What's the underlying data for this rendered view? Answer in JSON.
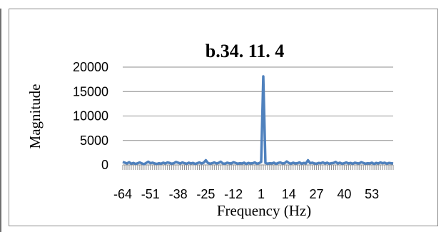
{
  "chart_data": {
    "type": "line",
    "title": "b.34. 11. 4",
    "xlabel": "Frequency (Hz)",
    "ylabel": "Magnitude",
    "ylim": [
      0,
      20000
    ],
    "yticks": [
      0,
      5000,
      10000,
      15000,
      20000
    ],
    "xtick_labels": [
      "-64",
      "-51",
      "-38",
      "-25",
      "-12",
      "1",
      "14",
      "27",
      "40",
      "53"
    ],
    "grid": "horizontal",
    "legend": "none",
    "color": "#4f81bd",
    "series": [
      {
        "x": [
          -64,
          -63,
          -62,
          -61,
          -60,
          -59,
          -58,
          -57,
          -56,
          -55,
          -54,
          -53,
          -52,
          -51,
          -50,
          -49,
          -48,
          -47,
          -46,
          -45,
          -44,
          -43,
          -42,
          -41,
          -40,
          -39,
          -38,
          -37,
          -36,
          -35,
          -34,
          -33,
          -32,
          -31,
          -30,
          -29,
          -28,
          -27,
          -26,
          -25,
          -24,
          -23,
          -22,
          -21,
          -20,
          -19,
          -18,
          -17,
          -16,
          -15,
          -14,
          -13,
          -12,
          -11,
          -10,
          -9,
          -8,
          -7,
          -6,
          -5,
          -4,
          -3,
          -2,
          -1,
          0,
          1,
          2,
          3,
          4,
          5,
          6,
          7,
          8,
          9,
          10,
          11,
          12,
          13,
          14,
          15,
          16,
          17,
          18,
          19,
          20,
          21,
          22,
          23,
          24,
          25,
          26,
          27,
          28,
          29,
          30,
          31,
          32,
          33,
          34,
          35,
          36,
          37,
          38,
          39,
          40,
          41,
          42,
          43,
          44,
          45,
          46,
          47,
          48,
          49,
          50,
          51,
          52,
          53,
          54,
          55,
          56,
          57,
          58,
          59,
          60,
          61,
          62,
          63
        ],
        "values": [
          600,
          450,
          300,
          550,
          250,
          400,
          200,
          350,
          500,
          300,
          150,
          400,
          650,
          350,
          450,
          300,
          200,
          350,
          250,
          450,
          300,
          500,
          400,
          250,
          350,
          600,
          450,
          300,
          500,
          350,
          250,
          450,
          300,
          400,
          200,
          350,
          500,
          300,
          450,
          950,
          400,
          250,
          350,
          500,
          300,
          400,
          650,
          300,
          250,
          450,
          350,
          300,
          550,
          400,
          250,
          350,
          300,
          450,
          200,
          400,
          300,
          350,
          500,
          250,
          350,
          600,
          18100,
          400,
          250,
          350,
          300,
          450,
          200,
          400,
          500,
          300,
          350,
          700,
          400,
          250,
          450,
          300,
          350,
          500,
          250,
          400,
          300,
          950,
          350,
          450,
          300,
          250,
          400,
          350,
          500,
          300,
          450,
          250,
          350,
          400,
          600,
          300,
          450,
          250,
          350,
          500,
          300,
          400,
          250,
          450,
          350,
          300,
          550,
          400,
          250,
          350,
          300,
          450,
          200,
          400,
          300,
          500,
          350,
          450,
          250,
          400,
          350,
          300
        ]
      }
    ]
  }
}
